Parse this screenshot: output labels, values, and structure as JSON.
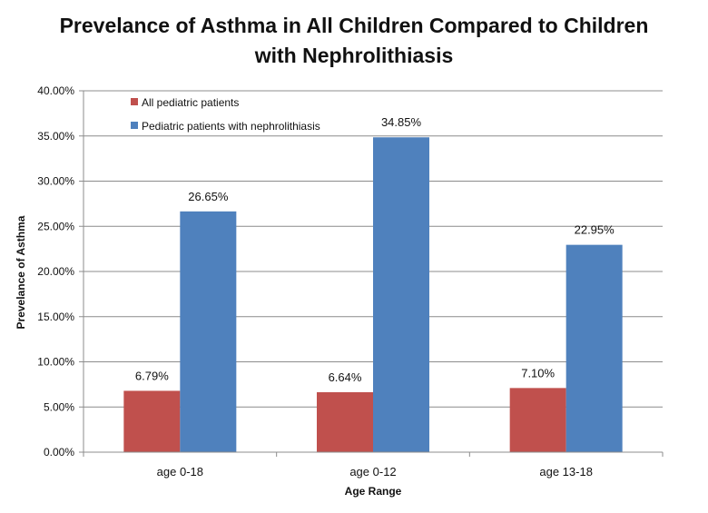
{
  "chart_data": {
    "type": "bar",
    "title": "Prevelance of Asthma in All Children Compared to Children with Nephrolithiasis",
    "title_lines": [
      "Prevelance of Asthma in All Children Compared to Children",
      "with Nephrolithiasis"
    ],
    "xlabel": "Age Range",
    "ylabel": "Prevelance of Asthma",
    "categories": [
      "age 0-18",
      "age 0-12",
      "age 13-18"
    ],
    "ylim": [
      0,
      40
    ],
    "yticks": [
      "0.00%",
      "5.00%",
      "10.00%",
      "15.00%",
      "20.00%",
      "25.00%",
      "30.00%",
      "35.00%",
      "40.00%"
    ],
    "grid": true,
    "legend_position": "top-left",
    "series": [
      {
        "name": "All pediatric patients",
        "color": "#C0504D",
        "values": [
          6.79,
          6.64,
          7.1
        ],
        "labels": [
          "6.79%",
          "6.64%",
          "7.10%"
        ]
      },
      {
        "name": "Pediatric patients with nephrolithiasis",
        "color": "#4F81BD",
        "values": [
          26.65,
          34.85,
          22.95
        ],
        "labels": [
          "26.65%",
          "34.85%",
          "22.95%"
        ]
      }
    ]
  }
}
